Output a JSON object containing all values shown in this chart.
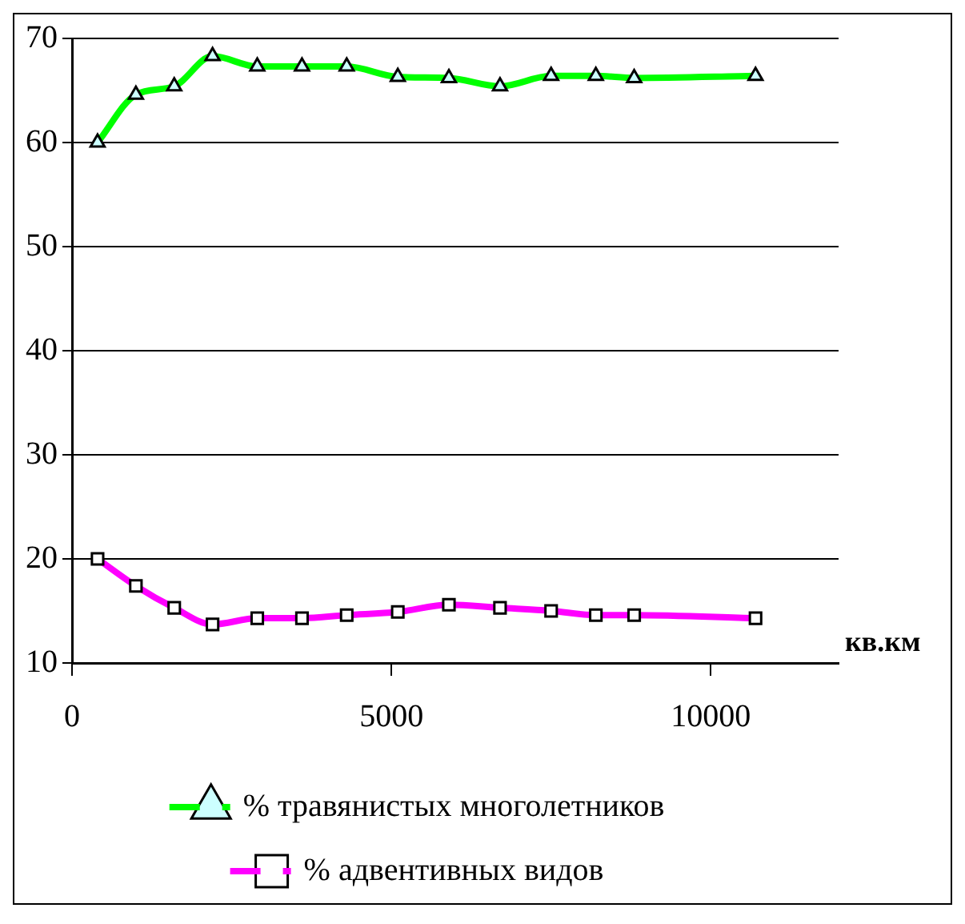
{
  "chart_data": {
    "type": "line",
    "xlabel": "кв.км",
    "x": [
      400,
      1000,
      1600,
      2200,
      2900,
      3600,
      4300,
      5100,
      5900,
      6700,
      7500,
      8200,
      8800,
      10700
    ],
    "series": [
      {
        "name": "% травянистых многолетников",
        "color": "#00ff00",
        "marker": "triangle",
        "values": [
          60,
          64.6,
          65.4,
          68.3,
          67.3,
          67.3,
          67.3,
          66.3,
          66.2,
          65.4,
          66.4,
          66.4,
          66.2,
          66.4
        ]
      },
      {
        "name": "% адвентивных видов",
        "color": "#ff00ff",
        "marker": "square",
        "values": [
          20,
          17.4,
          15.3,
          13.7,
          14.3,
          14.3,
          14.6,
          14.9,
          15.6,
          15.3,
          15.0,
          14.6,
          14.6,
          14.3
        ]
      }
    ],
    "xlim": [
      0,
      12000
    ],
    "xticks": [
      0,
      5000,
      10000
    ],
    "ylim": [
      10,
      70
    ],
    "yticks": [
      10,
      20,
      30,
      40,
      50,
      60,
      70
    ],
    "grid": "y",
    "legend": "bottom"
  }
}
